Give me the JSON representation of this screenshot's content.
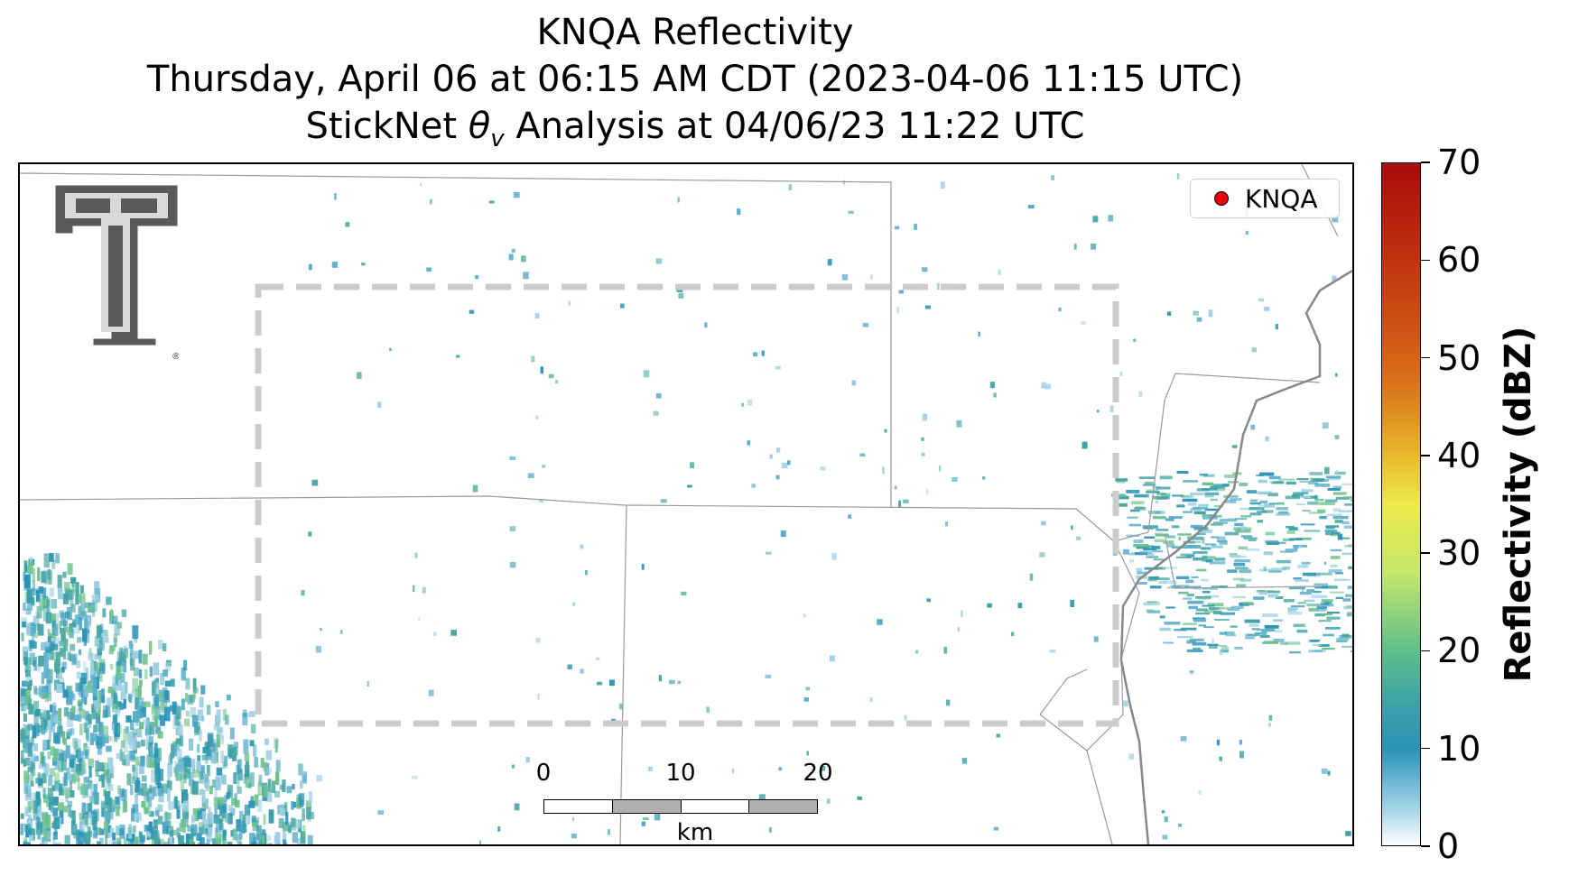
{
  "title": {
    "line1": "KNQA Reflectivity",
    "line2": "Thursday, April 06 at 06:15 AM CDT (2023-04-06 11:15 UTC)",
    "line3_prefix": "StickNet ",
    "line3_symbol": "θ",
    "line3_subscript": "v",
    "line3_suffix": " Analysis at 04/06/23 11:22 UTC"
  },
  "legend": {
    "label": "KNQA",
    "marker_color": "#e8000b"
  },
  "scale_bar": {
    "ticks": [
      "0",
      "10",
      "20"
    ],
    "units": "km"
  },
  "colorbar": {
    "label": "Reflectivity (dBZ)",
    "min": 0,
    "max": 70,
    "ticks": [
      "70",
      "60",
      "50",
      "40",
      "30",
      "20",
      "10",
      "0"
    ],
    "colors": {
      "low": "#ffffff",
      "mid_low": "#2b94b8",
      "mid": "#c4e86a",
      "high": "#a90b0b"
    }
  },
  "map": {
    "logo": "texas-tech-double-t-logo",
    "analysis_box_color": "#cccccc",
    "county_line_color": "#9a9a9a",
    "interstate_color": "#888888"
  }
}
